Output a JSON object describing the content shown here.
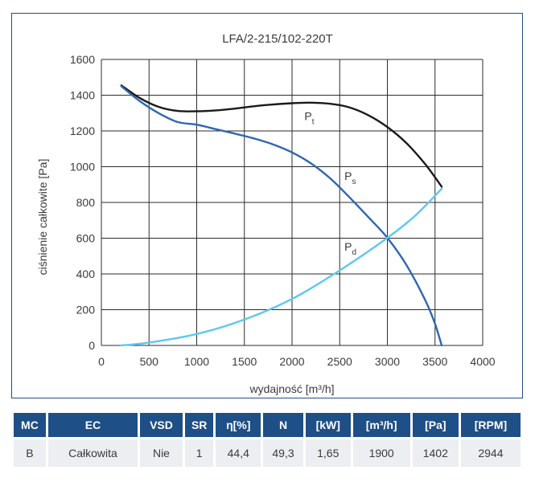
{
  "chart_data": {
    "type": "line",
    "title": "LFA/2-215/102-220T",
    "xlabel": "wydajność [m³/h]",
    "ylabel": "ciśnienie całkowite [Pa]",
    "xlim": [
      0,
      4000
    ],
    "ylim": [
      0,
      1600
    ],
    "x_ticks": [
      0,
      500,
      1000,
      1500,
      2000,
      2500,
      3000,
      3500,
      4000
    ],
    "y_ticks": [
      0,
      200,
      400,
      600,
      800,
      1000,
      1200,
      1400,
      1600
    ],
    "grid": true,
    "series": [
      {
        "name": "Pt",
        "label_main": "P",
        "label_sub": "t",
        "label_at": [
          2130,
          1260
        ],
        "color": "#1a1a1a",
        "points": [
          [
            210,
            1455
          ],
          [
            400,
            1385
          ],
          [
            600,
            1335
          ],
          [
            800,
            1312
          ],
          [
            1000,
            1310
          ],
          [
            1200,
            1315
          ],
          [
            1400,
            1325
          ],
          [
            1600,
            1338
          ],
          [
            1800,
            1348
          ],
          [
            2000,
            1355
          ],
          [
            2200,
            1358
          ],
          [
            2400,
            1352
          ],
          [
            2600,
            1332
          ],
          [
            2800,
            1288
          ],
          [
            3000,
            1222
          ],
          [
            3200,
            1132
          ],
          [
            3400,
            1012
          ],
          [
            3570,
            888
          ]
        ]
      },
      {
        "name": "Ps",
        "label_main": "P",
        "label_sub": "s",
        "label_at": [
          2550,
          925
        ],
        "color": "#2e67b1",
        "points": [
          [
            210,
            1450
          ],
          [
            400,
            1368
          ],
          [
            600,
            1300
          ],
          [
            800,
            1250
          ],
          [
            1000,
            1235
          ],
          [
            1200,
            1210
          ],
          [
            1400,
            1185
          ],
          [
            1600,
            1158
          ],
          [
            1800,
            1125
          ],
          [
            2000,
            1080
          ],
          [
            2200,
            1018
          ],
          [
            2400,
            935
          ],
          [
            2600,
            830
          ],
          [
            2800,
            718
          ],
          [
            3000,
            602
          ],
          [
            3200,
            450
          ],
          [
            3400,
            250
          ],
          [
            3500,
            120
          ],
          [
            3570,
            0
          ]
        ]
      },
      {
        "name": "Pd",
        "label_main": "P",
        "label_sub": "d",
        "label_at": [
          2550,
          530
        ],
        "color": "#5ec8ef",
        "points": [
          [
            210,
            0
          ],
          [
            500,
            16
          ],
          [
            1000,
            64
          ],
          [
            1500,
            145
          ],
          [
            2000,
            260
          ],
          [
            2500,
            420
          ],
          [
            3000,
            602
          ],
          [
            3300,
            730
          ],
          [
            3570,
            877
          ]
        ]
      }
    ]
  },
  "table": {
    "headers": [
      "MC",
      "EC",
      "VSD",
      "SR",
      "η[%]",
      "N",
      "[kW]",
      "[m³/h]",
      "[Pa]",
      "[RPM]"
    ],
    "row": [
      "B",
      "Całkowita",
      "Nie",
      "1",
      "44,4",
      "49,3",
      "1,65",
      "1900",
      "1402",
      "2944"
    ]
  },
  "colors": {
    "frame": "#1e4f86",
    "header_bg": "#1e4f86",
    "row_bg": "#eceef1",
    "grid": "#2b2b2b"
  }
}
